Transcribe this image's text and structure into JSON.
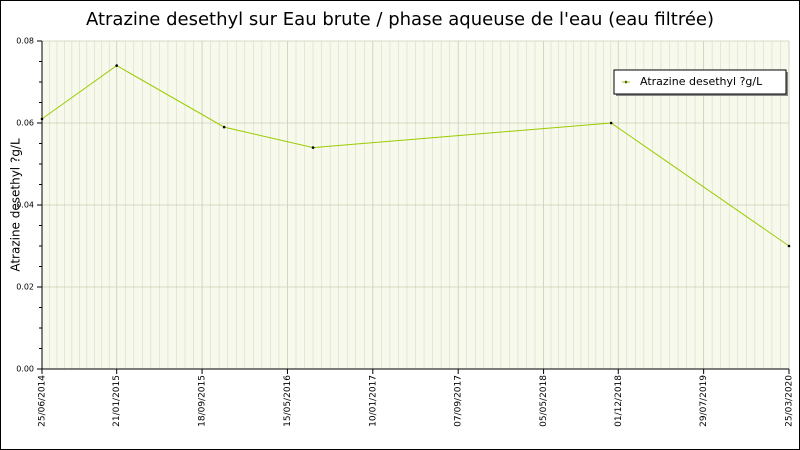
{
  "chart_data": {
    "type": "line",
    "title": "Atrazine desethyl sur Eau brute / phase aqueuse de l'eau (eau filtrée)",
    "y_label": "Atrazine desethyl ?g/L",
    "x": [
      "2014-06-25",
      "2015-01-21",
      "2015-11-19",
      "2016-07-26",
      "2018-11-11",
      "2020-03-25"
    ],
    "series": [
      {
        "name": "Atrazine desethyl ?g/L",
        "color": "#99cc00",
        "values": [
          0.061,
          0.074,
          0.059,
          0.054,
          0.06,
          0.03
        ]
      }
    ],
    "xlim": [
      "2014-06-25",
      "2020-03-25"
    ],
    "xticks": [
      {
        "value": "2014-06-25",
        "label": "25/06/2014"
      },
      {
        "value": "2015-01-21",
        "label": "21/01/2015"
      },
      {
        "value": "2015-09-18",
        "label": "18/09/2015"
      },
      {
        "value": "2016-05-15",
        "label": "15/05/2016"
      },
      {
        "value": "2017-01-10",
        "label": "10/01/2017"
      },
      {
        "value": "2017-09-07",
        "label": "07/09/2017"
      },
      {
        "value": "2018-05-05",
        "label": "05/05/2018"
      },
      {
        "value": "2018-12-01",
        "label": "01/12/2018"
      },
      {
        "value": "2019-07-29",
        "label": "29/07/2019"
      },
      {
        "value": "2020-03-25",
        "label": "25/03/2020"
      }
    ],
    "ylim": [
      0,
      0.08
    ],
    "yticks": [
      {
        "value": 0,
        "label": "0.00"
      },
      {
        "value": 0.02,
        "label": "0.02"
      },
      {
        "value": 0.04,
        "label": "0.04"
      },
      {
        "value": 0.06,
        "label": "0.06"
      },
      {
        "value": 0.08,
        "label": "0.08"
      }
    ],
    "grid": true,
    "legend": "top-right"
  }
}
